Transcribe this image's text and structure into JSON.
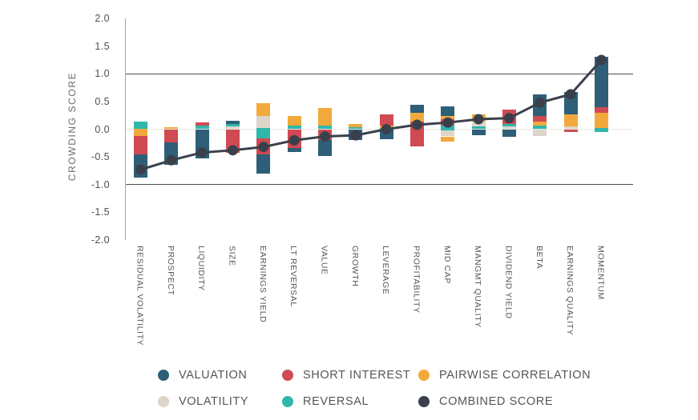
{
  "chart_data": {
    "type": "bar",
    "subtype": "stacked-bar-with-combined-score-line",
    "title": "",
    "xlabel": "",
    "ylabel": "CROWDING SCORE",
    "ylim": [
      -2.0,
      2.0
    ],
    "yticks": [
      "2.0",
      "1.5",
      "1.0",
      "0.5",
      "0.0",
      "-0.5",
      "-1.0",
      "-1.5",
      "-2.0"
    ],
    "gridlines": [
      {
        "value": 1.0,
        "color": "#4e4e4e"
      },
      {
        "value": 0.0,
        "color": "#eae8e3"
      },
      {
        "value": -1.0,
        "color": "#4e4e4e"
      }
    ],
    "grid": "horizontal-only",
    "legend_position": "bottom",
    "series_colors": {
      "valuation": "#2e5e78",
      "short_interest": "#d04a53",
      "pairwise_correlation": "#f2a93b",
      "volatility": "#ddd5c9",
      "reversal": "#2fb7ab",
      "combined_score": "#3a404b"
    },
    "categories": [
      "RESIDUAL VOLATILITY",
      "PROSPECT",
      "LIQUIDITY",
      "SIZE",
      "EARNINGS YIELD",
      "LT REVERSAL",
      "VALUE",
      "GROWTH",
      "LEVERAGE",
      "PROFITABILITY",
      "MID CAP",
      "MANGMT QUALITY",
      "DIVIDEND YIELD",
      "BETA",
      "EARNINGS QUALITY",
      "MOMENTUM"
    ],
    "bars": [
      {
        "category": "RESIDUAL VOLATILITY",
        "combined_score": -0.73,
        "segments": [
          {
            "series": "reversal",
            "from": 0.13,
            "to": 0.01
          },
          {
            "series": "pairwise_correlation",
            "from": 0.01,
            "to": -0.12
          },
          {
            "series": "short_interest",
            "from": -0.12,
            "to": -0.46
          },
          {
            "series": "valuation",
            "from": -0.46,
            "to": -0.88
          }
        ]
      },
      {
        "category": "PROSPECT",
        "combined_score": -0.56,
        "segments": [
          {
            "series": "pairwise_correlation",
            "from": 0.04,
            "to": 0.0
          },
          {
            "series": "short_interest",
            "from": 0.0,
            "to": -0.24
          },
          {
            "series": "valuation",
            "from": -0.24,
            "to": -0.64
          }
        ]
      },
      {
        "category": "LIQUIDITY",
        "combined_score": -0.42,
        "segments": [
          {
            "series": "short_interest",
            "from": 0.12,
            "to": 0.06
          },
          {
            "series": "reversal",
            "from": 0.06,
            "to": 0.0
          },
          {
            "series": "valuation",
            "from": 0.0,
            "to": -0.53
          }
        ]
      },
      {
        "category": "SIZE",
        "combined_score": -0.38,
        "segments": [
          {
            "series": "valuation",
            "from": 0.15,
            "to": 0.1
          },
          {
            "series": "reversal",
            "from": 0.1,
            "to": 0.05
          },
          {
            "series": "volatility",
            "from": 0.05,
            "to": 0.0
          },
          {
            "series": "short_interest",
            "from": 0.0,
            "to": -0.43
          }
        ]
      },
      {
        "category": "EARNINGS YIELD",
        "combined_score": -0.32,
        "segments": [
          {
            "series": "pairwise_correlation",
            "from": 0.47,
            "to": 0.24
          },
          {
            "series": "volatility",
            "from": 0.24,
            "to": 0.02
          },
          {
            "series": "reversal",
            "from": 0.02,
            "to": -0.17
          },
          {
            "series": "short_interest",
            "from": -0.17,
            "to": -0.46
          },
          {
            "series": "valuation",
            "from": -0.46,
            "to": -0.8
          }
        ]
      },
      {
        "category": "LT REVERSAL",
        "combined_score": -0.2,
        "segments": [
          {
            "series": "pairwise_correlation",
            "from": 0.24,
            "to": 0.06
          },
          {
            "series": "reversal",
            "from": 0.06,
            "to": 0.0
          },
          {
            "series": "short_interest",
            "from": 0.0,
            "to": -0.34
          },
          {
            "series": "valuation",
            "from": -0.34,
            "to": -0.41
          }
        ]
      },
      {
        "category": "VALUE",
        "combined_score": -0.13,
        "segments": [
          {
            "series": "pairwise_correlation",
            "from": 0.38,
            "to": 0.07
          },
          {
            "series": "reversal",
            "from": 0.07,
            "to": 0.0
          },
          {
            "series": "short_interest",
            "from": 0.0,
            "to": -0.19
          },
          {
            "series": "valuation",
            "from": -0.19,
            "to": -0.48
          }
        ]
      },
      {
        "category": "GROWTH",
        "combined_score": -0.11,
        "segments": [
          {
            "series": "pairwise_correlation",
            "from": 0.1,
            "to": 0.04
          },
          {
            "series": "reversal",
            "from": 0.04,
            "to": 0.0
          },
          {
            "series": "valuation",
            "from": 0.0,
            "to": -0.19
          }
        ]
      },
      {
        "category": "LEVERAGE",
        "combined_score": 0.0,
        "segments": [
          {
            "series": "short_interest",
            "from": 0.27,
            "to": 0.07
          },
          {
            "series": "pairwise_correlation",
            "from": 0.07,
            "to": 0.02
          },
          {
            "series": "reversal",
            "from": 0.02,
            "to": 0.0
          },
          {
            "series": "valuation",
            "from": 0.0,
            "to": -0.18
          }
        ]
      },
      {
        "category": "PROFITABILITY",
        "combined_score": 0.08,
        "segments": [
          {
            "series": "valuation",
            "from": 0.44,
            "to": 0.29
          },
          {
            "series": "pairwise_correlation",
            "from": 0.29,
            "to": 0.14
          },
          {
            "series": "short_interest",
            "from": 0.14,
            "to": -0.31
          }
        ]
      },
      {
        "category": "MID CAP",
        "combined_score": 0.12,
        "segments": [
          {
            "series": "valuation",
            "from": 0.41,
            "to": 0.24
          },
          {
            "series": "pairwise_correlation",
            "from": 0.24,
            "to": 0.18
          },
          {
            "series": "short_interest",
            "from": 0.18,
            "to": 0.06
          },
          {
            "series": "reversal",
            "from": 0.06,
            "to": -0.02
          },
          {
            "series": "volatility",
            "from": -0.02,
            "to": -0.13
          },
          {
            "series": "pairwise_correlation",
            "from": -0.13,
            "to": -0.23
          }
        ]
      },
      {
        "category": "MANGMT QUALITY",
        "combined_score": 0.18,
        "segments": [
          {
            "series": "pairwise_correlation",
            "from": 0.27,
            "to": 0.13
          },
          {
            "series": "volatility",
            "from": 0.13,
            "to": 0.05
          },
          {
            "series": "reversal",
            "from": 0.05,
            "to": 0.0
          },
          {
            "series": "valuation",
            "from": 0.0,
            "to": -0.11
          }
        ]
      },
      {
        "category": "DIVIDEND YIELD",
        "combined_score": 0.2,
        "segments": [
          {
            "series": "short_interest",
            "from": 0.35,
            "to": 0.1
          },
          {
            "series": "reversal",
            "from": 0.1,
            "to": 0.05
          },
          {
            "series": "volatility",
            "from": 0.05,
            "to": 0.0
          },
          {
            "series": "valuation",
            "from": 0.0,
            "to": -0.14
          }
        ]
      },
      {
        "category": "BETA",
        "combined_score": 0.48,
        "segments": [
          {
            "series": "valuation",
            "from": 0.63,
            "to": 0.24
          },
          {
            "series": "short_interest",
            "from": 0.24,
            "to": 0.14
          },
          {
            "series": "pairwise_correlation",
            "from": 0.14,
            "to": 0.07
          },
          {
            "series": "reversal",
            "from": 0.07,
            "to": 0.01
          },
          {
            "series": "volatility",
            "from": 0.0,
            "to": -0.12
          }
        ]
      },
      {
        "category": "EARNINGS QUALITY",
        "combined_score": 0.63,
        "segments": [
          {
            "series": "valuation",
            "from": 0.67,
            "to": 0.27
          },
          {
            "series": "pairwise_correlation",
            "from": 0.27,
            "to": 0.05
          },
          {
            "series": "volatility",
            "from": 0.05,
            "to": 0.0
          },
          {
            "series": "short_interest",
            "from": 0.0,
            "to": -0.05
          }
        ]
      },
      {
        "category": "MOMENTUM",
        "combined_score": 1.25,
        "segments": [
          {
            "series": "valuation",
            "from": 1.3,
            "to": 0.39
          },
          {
            "series": "short_interest",
            "from": 0.39,
            "to": 0.29
          },
          {
            "series": "pairwise_correlation",
            "from": 0.29,
            "to": 0.02
          },
          {
            "series": "reversal",
            "from": 0.02,
            "to": -0.05
          }
        ]
      }
    ],
    "legend": {
      "items": [
        {
          "label": "VALUATION",
          "series": "valuation"
        },
        {
          "label": "SHORT INTEREST",
          "series": "short_interest"
        },
        {
          "label": "PAIRWISE CORRELATION",
          "series": "pairwise_correlation"
        },
        {
          "label": "VOLATILITY",
          "series": "volatility"
        },
        {
          "label": "REVERSAL",
          "series": "reversal"
        },
        {
          "label": "COMBINED SCORE",
          "series": "combined_score"
        }
      ]
    }
  }
}
